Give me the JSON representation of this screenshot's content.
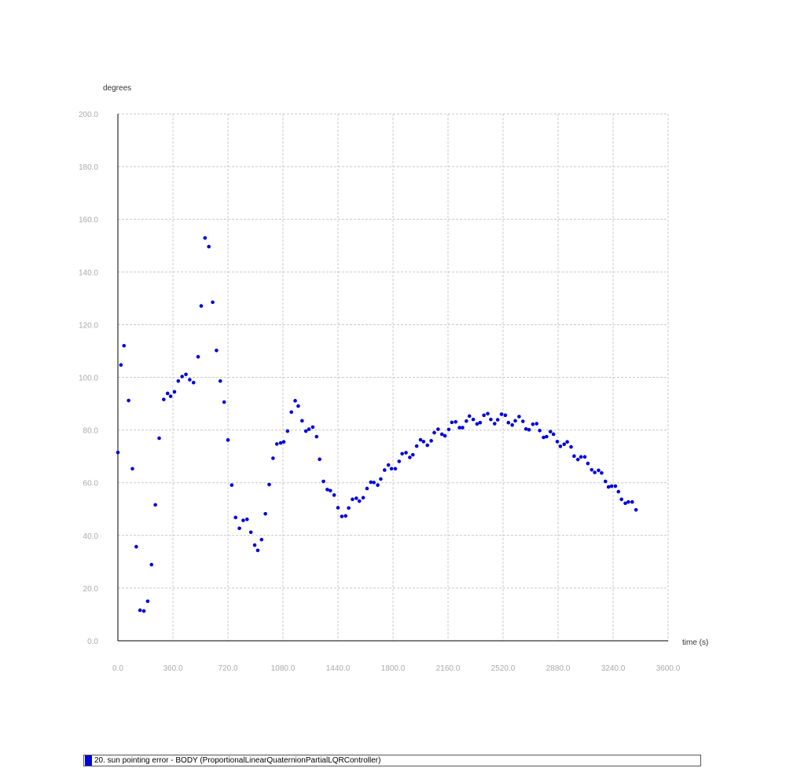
{
  "chart_data": {
    "type": "scatter",
    "ylabel": "degrees",
    "xlabel": "time (s)",
    "xlim": [
      0,
      3600
    ],
    "ylim": [
      0,
      200
    ],
    "x_ticks": [
      "0.0",
      "360.0",
      "720.0",
      "1080.0",
      "1440.0",
      "1800.0",
      "2160.0",
      "2520.0",
      "2880.0",
      "3240.0",
      "3600.0"
    ],
    "y_ticks": [
      "0.0",
      "20.0",
      "40.0",
      "60.0",
      "80.0",
      "100.0",
      "120.0",
      "140.0",
      "160.0",
      "180.0",
      "200.0"
    ],
    "grid": true,
    "legend_position": "bottom",
    "series": [
      {
        "name": "20. sun pointing error - BODY (ProportionalLinearQuaternionPartialLQRController)",
        "color": "#0000dd",
        "points": [
          [
            0,
            71.5
          ],
          [
            20,
            104.7
          ],
          [
            40,
            112
          ],
          [
            70,
            91.2
          ],
          [
            95,
            65.3
          ],
          [
            120,
            35.7
          ],
          [
            145,
            11.6
          ],
          [
            170,
            11.3
          ],
          [
            195,
            15
          ],
          [
            220,
            28.9
          ],
          [
            245,
            51.6
          ],
          [
            270,
            76.9
          ],
          [
            300,
            91.6
          ],
          [
            325,
            93.9
          ],
          [
            345,
            92.8
          ],
          [
            370,
            94.5
          ],
          [
            395,
            98.6
          ],
          [
            420,
            100.3
          ],
          [
            445,
            101.1
          ],
          [
            470,
            99.1
          ],
          [
            495,
            98
          ],
          [
            525,
            107.8
          ],
          [
            545,
            127.1
          ],
          [
            570,
            152.9
          ],
          [
            595,
            149.6
          ],
          [
            620,
            128.5
          ],
          [
            645,
            110.2
          ],
          [
            670,
            98.6
          ],
          [
            695,
            90.6
          ],
          [
            720,
            76.2
          ],
          [
            745,
            59.1
          ],
          [
            770,
            46.8
          ],
          [
            795,
            42.7
          ],
          [
            820,
            45.7
          ],
          [
            845,
            46.1
          ],
          [
            870,
            41.2
          ],
          [
            895,
            36.3
          ],
          [
            915,
            34.3
          ],
          [
            940,
            38.4
          ],
          [
            965,
            48.2
          ],
          [
            990,
            59.3
          ],
          [
            1015,
            69.3
          ],
          [
            1040,
            74.7
          ],
          [
            1065,
            75.1
          ],
          [
            1085,
            75.5
          ],
          [
            1110,
            79.6
          ],
          [
            1135,
            86.8
          ],
          [
            1160,
            91.1
          ],
          [
            1180,
            89.1
          ],
          [
            1205,
            83.5
          ],
          [
            1230,
            79.6
          ],
          [
            1250,
            80.3
          ],
          [
            1275,
            81.1
          ],
          [
            1300,
            77.5
          ],
          [
            1320,
            68.9
          ],
          [
            1345,
            60.5
          ],
          [
            1370,
            57.4
          ],
          [
            1390,
            57
          ],
          [
            1415,
            55.3
          ],
          [
            1440,
            50.5
          ],
          [
            1465,
            47.2
          ],
          [
            1490,
            47.4
          ],
          [
            1510,
            50.4
          ],
          [
            1535,
            53.7
          ],
          [
            1560,
            54.1
          ],
          [
            1580,
            53
          ],
          [
            1605,
            54.3
          ],
          [
            1630,
            57.8
          ],
          [
            1655,
            60.2
          ],
          [
            1675,
            60.1
          ],
          [
            1700,
            59.1
          ],
          [
            1720,
            61.4
          ],
          [
            1745,
            64.8
          ],
          [
            1770,
            66.7
          ],
          [
            1790,
            65.3
          ],
          [
            1815,
            65.3
          ],
          [
            1840,
            68.1
          ],
          [
            1860,
            71
          ],
          [
            1885,
            71.4
          ],
          [
            1910,
            69.6
          ],
          [
            1930,
            70.6
          ],
          [
            1955,
            73.9
          ],
          [
            1980,
            76.3
          ],
          [
            2000,
            75.6
          ],
          [
            2025,
            74.2
          ],
          [
            2050,
            75.9
          ],
          [
            2070,
            79
          ],
          [
            2095,
            80.3
          ],
          [
            2120,
            78.4
          ],
          [
            2140,
            77.8
          ],
          [
            2165,
            80.2
          ],
          [
            2185,
            82.9
          ],
          [
            2210,
            83.1
          ],
          [
            2235,
            80.9
          ],
          [
            2255,
            80.9
          ],
          [
            2280,
            83.4
          ],
          [
            2300,
            85.3
          ],
          [
            2325,
            84
          ],
          [
            2350,
            82.3
          ],
          [
            2370,
            82.8
          ],
          [
            2395,
            85.6
          ],
          [
            2420,
            86.2
          ],
          [
            2440,
            84
          ],
          [
            2465,
            82.4
          ],
          [
            2485,
            83.9
          ],
          [
            2510,
            86
          ],
          [
            2535,
            85.6
          ],
          [
            2555,
            82.8
          ],
          [
            2580,
            81.9
          ],
          [
            2600,
            83.5
          ],
          [
            2625,
            85.1
          ],
          [
            2650,
            83.3
          ],
          [
            2670,
            80.4
          ],
          [
            2690,
            80.1
          ],
          [
            2715,
            82.2
          ],
          [
            2740,
            82.4
          ],
          [
            2760,
            79.8
          ],
          [
            2785,
            77.2
          ],
          [
            2805,
            77.5
          ],
          [
            2830,
            79.4
          ],
          [
            2850,
            78.4
          ],
          [
            2875,
            75.6
          ],
          [
            2895,
            73.8
          ],
          [
            2920,
            74.6
          ],
          [
            2940,
            75.5
          ],
          [
            2965,
            73.6
          ],
          [
            2985,
            70.1
          ],
          [
            3010,
            68.8
          ],
          [
            3030,
            69.8
          ],
          [
            3055,
            69.8
          ],
          [
            3075,
            67.3
          ],
          [
            3100,
            64.9
          ],
          [
            3120,
            63.9
          ],
          [
            3145,
            64.7
          ],
          [
            3165,
            63.7
          ],
          [
            3190,
            60.5
          ],
          [
            3210,
            58.4
          ],
          [
            3230,
            58.7
          ],
          [
            3255,
            58.7
          ],
          [
            3275,
            56.6
          ],
          [
            3295,
            53.7
          ],
          [
            3320,
            52.2
          ],
          [
            3340,
            52.7
          ],
          [
            3365,
            52.7
          ],
          [
            3390,
            49.7
          ]
        ]
      }
    ]
  }
}
